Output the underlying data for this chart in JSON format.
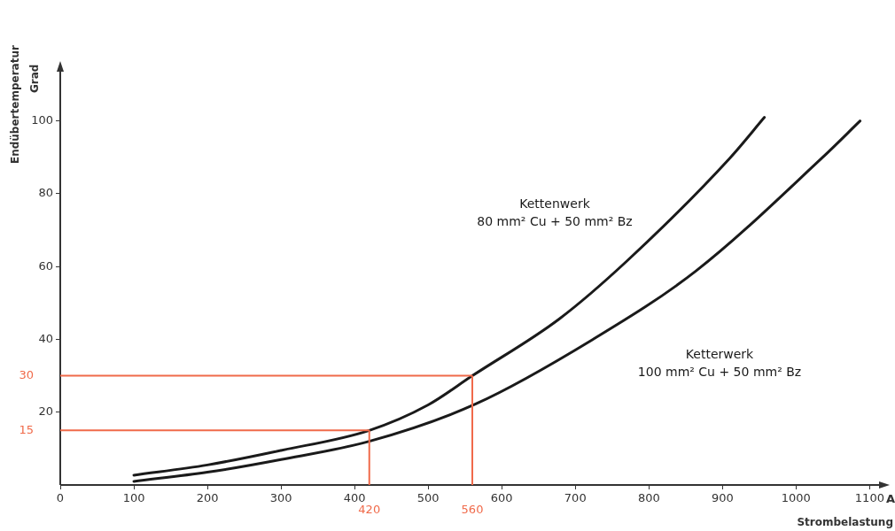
{
  "chart_data": {
    "type": "line",
    "xlabel": "Strombelastung",
    "ylabel": "Endübertemperatur\nGrad",
    "annotations": [
      "A"
    ],
    "xlim": [
      0,
      1120
    ],
    "ylim": [
      0,
      115
    ],
    "xticks": [
      0,
      100,
      200,
      300,
      400,
      500,
      600,
      700,
      800,
      900,
      1000,
      1100
    ],
    "yticks": [
      20,
      40,
      60,
      80,
      100
    ],
    "grid": false,
    "legend": false,
    "marker": "none",
    "line_style": "solid",
    "series": [
      {
        "name": "Kettenwerk\n80 mm² Cu + 50 mm² Bz",
        "color": "#1a1a1a",
        "x": [
          100,
          200,
          300,
          420,
          500,
          560,
          678,
          771,
          910,
          957
        ],
        "values": [
          2.7,
          5.5,
          9.5,
          15,
          22,
          30,
          45.6,
          61.7,
          89.8,
          101
        ]
      },
      {
        "name": "Ketterwerk\n100 mm² Cu + 50 mm² Bz",
        "color": "#1a1a1a",
        "x": [
          100,
          200,
          300,
          420,
          564,
          724,
          864,
          1035,
          1087
        ],
        "values": [
          1,
          3.5,
          7,
          12,
          22.2,
          40,
          58.8,
          89.8,
          100
        ]
      }
    ],
    "ref_lines": [
      {
        "axis": "y",
        "value": 15,
        "label": "15",
        "color": "#f06a4a"
      },
      {
        "axis": "x",
        "value": 420,
        "label": "420",
        "color": "#f06a4a"
      },
      {
        "axis": "y",
        "value": 30,
        "label": "30",
        "color": "#f06a4a"
      },
      {
        "axis": "x",
        "value": 560,
        "label": "560",
        "color": "#f06a4a"
      }
    ]
  }
}
